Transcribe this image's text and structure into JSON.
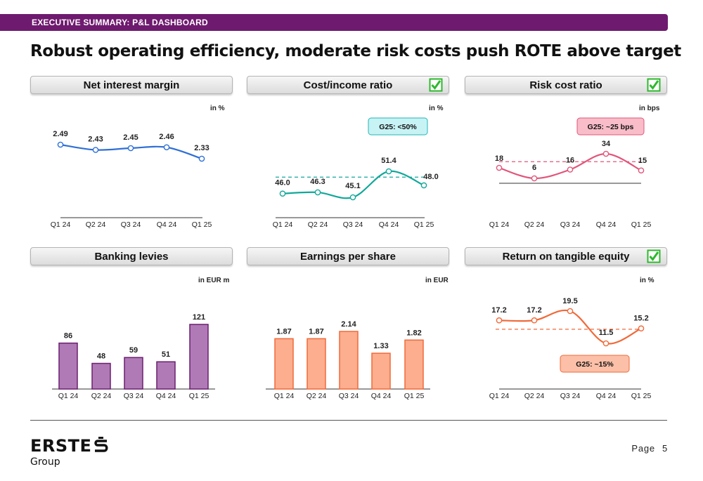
{
  "header": {
    "banner": "EXECUTIVE SUMMARY: P&L DASHBOARD"
  },
  "headline": "Robust operating efficiency, moderate risk costs push ROTE above target",
  "colors": {
    "banner": "#6e1a6e",
    "nim": "#2f6fd6",
    "cir": "#12a89a",
    "risk": "#e2557a",
    "levies_fill": "#b07ab6",
    "levies_edge": "#6a1f6e",
    "eps_fill": "#fcae8e",
    "eps_edge": "#f06a3a",
    "rote": "#f06a3a",
    "check": "#2eb82e"
  },
  "chart_data": [
    {
      "id": "nim",
      "type": "line",
      "title": "Net interest margin",
      "unit": "in %",
      "check": false,
      "categories": [
        "Q1 24",
        "Q2 24",
        "Q3 24",
        "Q4 24",
        "Q1 25"
      ],
      "values": [
        2.49,
        2.43,
        2.45,
        2.46,
        2.33
      ],
      "labels": [
        "2.49",
        "2.43",
        "2.45",
        "2.46",
        "2.33"
      ]
    },
    {
      "id": "cir",
      "type": "line",
      "title": "Cost/income ratio",
      "unit": "in %",
      "check": true,
      "categories": [
        "Q1 24",
        "Q2 24",
        "Q3 24",
        "Q4 24",
        "Q1 25"
      ],
      "values": [
        46.0,
        46.3,
        45.1,
        51.4,
        48.0
      ],
      "labels": [
        "46.0",
        "46.3",
        "45.1",
        "51.4",
        "48.0"
      ],
      "target": {
        "label": "G25: <50%",
        "value": 50
      }
    },
    {
      "id": "risk",
      "type": "line",
      "title": "Risk cost ratio",
      "unit": "in bps",
      "check": true,
      "categories": [
        "Q1 24",
        "Q2 24",
        "Q3 24",
        "Q4 24",
        "Q1 25"
      ],
      "values": [
        18,
        6,
        16,
        34,
        15
      ],
      "labels": [
        "18",
        "6",
        "16",
        "34",
        "15"
      ],
      "target": {
        "label": "G25: ~25 bps",
        "value": 25
      }
    },
    {
      "id": "levies",
      "type": "bar",
      "title": "Banking levies",
      "unit": "in EUR m",
      "check": false,
      "categories": [
        "Q1 24",
        "Q2 24",
        "Q3 24",
        "Q4 24",
        "Q1 25"
      ],
      "values": [
        86,
        48,
        59,
        51,
        121
      ],
      "labels": [
        "86",
        "48",
        "59",
        "51",
        "121"
      ]
    },
    {
      "id": "eps",
      "type": "bar",
      "title": "Earnings per share",
      "unit": "in EUR",
      "check": false,
      "categories": [
        "Q1 24",
        "Q2 24",
        "Q3 24",
        "Q4 24",
        "Q1 25"
      ],
      "values": [
        1.87,
        1.87,
        2.14,
        1.33,
        1.82
      ],
      "labels": [
        "1.87",
        "1.87",
        "2.14",
        "1.33",
        "1.82"
      ]
    },
    {
      "id": "rote",
      "type": "line",
      "title": "Return on tangible equity",
      "unit": "in %",
      "check": true,
      "categories": [
        "Q1 24",
        "Q2 24",
        "Q3 24",
        "Q4 24",
        "Q1 25"
      ],
      "values": [
        17.2,
        17.2,
        19.5,
        11.5,
        15.2
      ],
      "labels": [
        "17.2",
        "17.2",
        "19.5",
        "11.5",
        "15.2"
      ],
      "target": {
        "label": "G25: ~15%",
        "value": 15
      }
    }
  ],
  "footer": {
    "logo_word": "ERSTE",
    "logo_sub": "Group",
    "page_label": "Page",
    "page_number": "5"
  }
}
